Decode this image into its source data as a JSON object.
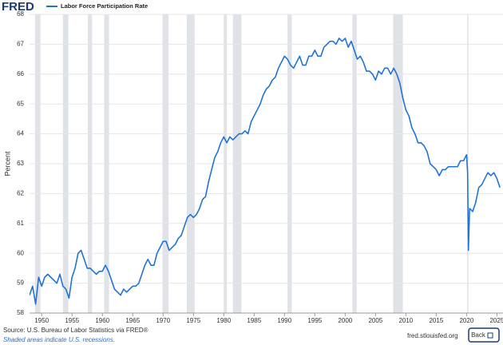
{
  "header": {
    "logo": "FRED"
  },
  "chart_data": {
    "type": "line",
    "series": [
      {
        "name": "Labor Force Participation Rate",
        "color": "#1f73d8",
        "x": [
          1948.0,
          1948.5,
          1949.0,
          1949.5,
          1950.0,
          1950.5,
          1951.0,
          1951.5,
          1952.0,
          1952.5,
          1953.0,
          1953.5,
          1954.0,
          1954.5,
          1955.0,
          1955.5,
          1956.0,
          1956.5,
          1957.0,
          1957.5,
          1958.0,
          1958.5,
          1959.0,
          1959.5,
          1960.0,
          1960.5,
          1961.0,
          1961.5,
          1962.0,
          1962.5,
          1963.0,
          1963.5,
          1964.0,
          1964.5,
          1965.0,
          1965.5,
          1966.0,
          1966.5,
          1967.0,
          1967.5,
          1968.0,
          1968.5,
          1969.0,
          1969.5,
          1970.0,
          1970.5,
          1971.0,
          1971.5,
          1972.0,
          1972.5,
          1973.0,
          1973.5,
          1974.0,
          1974.5,
          1975.0,
          1975.5,
          1976.0,
          1976.5,
          1977.0,
          1977.5,
          1978.0,
          1978.5,
          1979.0,
          1979.5,
          1980.0,
          1980.5,
          1981.0,
          1981.5,
          1982.0,
          1982.5,
          1983.0,
          1983.5,
          1984.0,
          1984.5,
          1985.0,
          1985.5,
          1986.0,
          1986.5,
          1987.0,
          1987.5,
          1988.0,
          1988.5,
          1989.0,
          1989.5,
          1990.0,
          1990.5,
          1991.0,
          1991.5,
          1992.0,
          1992.5,
          1993.0,
          1993.5,
          1994.0,
          1994.5,
          1995.0,
          1995.5,
          1996.0,
          1996.5,
          1997.0,
          1997.5,
          1998.0,
          1998.5,
          1999.0,
          1999.5,
          2000.0,
          2000.5,
          2001.0,
          2001.5,
          2002.0,
          2002.5,
          2003.0,
          2003.5,
          2004.0,
          2004.5,
          2005.0,
          2005.5,
          2006.0,
          2006.5,
          2007.0,
          2007.5,
          2008.0,
          2008.5,
          2009.0,
          2009.5,
          2010.0,
          2010.5,
          2011.0,
          2011.5,
          2012.0,
          2012.5,
          2013.0,
          2013.5,
          2014.0,
          2014.5,
          2015.0,
          2015.5,
          2016.0,
          2016.5,
          2017.0,
          2017.5,
          2018.0,
          2018.5,
          2019.0,
          2019.5,
          2020.0,
          2020.17,
          2020.3,
          2020.5,
          2021.0,
          2021.5,
          2022.0,
          2022.5,
          2023.0,
          2023.5,
          2024.0,
          2024.5,
          2025.0,
          2025.5
        ],
        "values": [
          58.6,
          58.9,
          58.3,
          59.2,
          58.9,
          59.2,
          59.3,
          59.2,
          59.1,
          59.0,
          59.3,
          58.9,
          58.8,
          58.5,
          59.2,
          59.5,
          60.0,
          60.1,
          59.8,
          59.5,
          59.5,
          59.4,
          59.3,
          59.4,
          59.4,
          59.6,
          59.4,
          59.1,
          58.8,
          58.7,
          58.6,
          58.8,
          58.7,
          58.8,
          58.9,
          58.9,
          59.0,
          59.3,
          59.6,
          59.8,
          59.6,
          59.6,
          60.0,
          60.2,
          60.4,
          60.4,
          60.1,
          60.2,
          60.3,
          60.5,
          60.6,
          60.9,
          61.2,
          61.3,
          61.2,
          61.3,
          61.5,
          61.8,
          61.9,
          62.4,
          62.8,
          63.2,
          63.4,
          63.7,
          63.9,
          63.7,
          63.9,
          63.8,
          63.9,
          64.0,
          64.0,
          64.1,
          64.0,
          64.4,
          64.6,
          64.8,
          65.0,
          65.3,
          65.5,
          65.6,
          65.8,
          65.9,
          66.2,
          66.4,
          66.6,
          66.5,
          66.3,
          66.2,
          66.4,
          66.6,
          66.3,
          66.3,
          66.6,
          66.6,
          66.8,
          66.6,
          66.6,
          66.9,
          67.0,
          67.1,
          67.1,
          67.0,
          67.2,
          67.1,
          67.2,
          66.9,
          67.1,
          66.8,
          66.5,
          66.6,
          66.4,
          66.1,
          66.1,
          66.0,
          65.8,
          66.1,
          66.0,
          66.2,
          66.2,
          66.0,
          66.2,
          66.0,
          65.7,
          65.2,
          64.8,
          64.6,
          64.2,
          64.0,
          63.7,
          63.7,
          63.6,
          63.4,
          63.0,
          62.9,
          62.8,
          62.6,
          62.8,
          62.8,
          62.9,
          62.9,
          62.9,
          62.9,
          63.1,
          63.1,
          63.3,
          62.7,
          60.1,
          61.5,
          61.4,
          61.7,
          62.2,
          62.3,
          62.5,
          62.7,
          62.6,
          62.7,
          62.5,
          62.2
        ]
      }
    ],
    "y_label": "Percent",
    "xlim": [
      1948,
      2026
    ],
    "ylim": [
      58,
      68
    ],
    "xticks": [
      1950,
      1955,
      1960,
      1965,
      1970,
      1975,
      1980,
      1985,
      1990,
      1995,
      2000,
      2005,
      2010,
      2015,
      2020,
      2025
    ],
    "yticks": [
      58,
      59,
      60,
      61,
      62,
      63,
      64,
      65,
      66,
      67,
      68
    ],
    "recessions": [
      [
        1948.9,
        1949.8
      ],
      [
        1953.5,
        1954.4
      ],
      [
        1957.6,
        1958.3
      ],
      [
        1960.3,
        1961.1
      ],
      [
        1969.9,
        1970.9
      ],
      [
        1973.9,
        1975.2
      ],
      [
        1980.0,
        1980.5
      ],
      [
        1981.5,
        1982.9
      ],
      [
        1990.5,
        1991.2
      ],
      [
        2001.2,
        2001.9
      ],
      [
        2007.9,
        2009.5
      ],
      [
        2020.1,
        2020.3
      ]
    ],
    "recession_color": "#dfe2e6",
    "grid": true
  },
  "footer": {
    "source": "Source: U.S. Bureau of Labor Statistics via FRED®",
    "note": "Shaded areas indicate U.S. recessions.",
    "site": "fred.stlouisfed.org",
    "button": "Back"
  }
}
